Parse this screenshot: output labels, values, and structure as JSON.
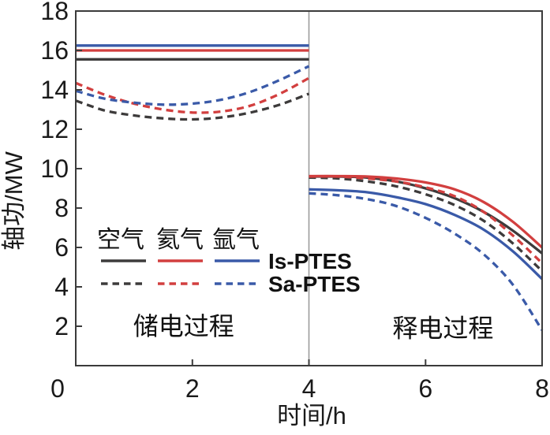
{
  "colors": {
    "air": "#3d3b3b",
    "helium": "#d23f3f",
    "argon": "#3a5aa8",
    "frame": "#3b3b3b",
    "divider": "#9b9b9b",
    "text": "#1a1a1a"
  },
  "legend": {
    "gases": [
      "空气",
      "氦气",
      "氩气"
    ],
    "systems": [
      "Is-PTES",
      "Sa-PTES"
    ]
  },
  "chart_data": {
    "type": "line",
    "title": "",
    "xlabel": "时间/h",
    "ylabel": "轴功/MW",
    "xlim": [
      0,
      8
    ],
    "ylim": [
      0,
      18
    ],
    "xticks": [
      0,
      2,
      4,
      6,
      8
    ],
    "yticks": [
      2,
      4,
      6,
      8,
      10,
      12,
      14,
      16,
      18
    ],
    "divider_x": 4,
    "grid": false,
    "legend_position": "lower-left",
    "annotations": [
      {
        "text": "储电过程",
        "x": 1.85,
        "y": 2.0
      },
      {
        "text": "释电过程",
        "x": 6.3,
        "y": 1.9
      }
    ],
    "x_charge": [
      0,
      0.5,
      1,
      1.5,
      2,
      2.5,
      3,
      3.5,
      4
    ],
    "x_discharge": [
      4,
      4.5,
      5,
      5.5,
      6,
      6.5,
      7,
      7.5,
      8
    ],
    "series": [
      {
        "id": "air-is",
        "gas": "空气",
        "system": "Is-PTES",
        "color_key": "air",
        "line_style": "solid",
        "charge_y": [
          15.55,
          15.55,
          15.55,
          15.55,
          15.55,
          15.55,
          15.55,
          15.55,
          15.55
        ],
        "discharge_y": [
          9.6,
          9.6,
          9.55,
          9.35,
          9.0,
          8.5,
          7.8,
          6.85,
          5.7
        ]
      },
      {
        "id": "helium-is",
        "gas": "氦气",
        "system": "Is-PTES",
        "color_key": "helium",
        "line_style": "solid",
        "charge_y": [
          16.0,
          16.0,
          16.0,
          16.0,
          16.0,
          16.0,
          16.0,
          16.0,
          16.0
        ],
        "discharge_y": [
          9.62,
          9.62,
          9.6,
          9.5,
          9.3,
          8.95,
          8.3,
          7.3,
          6.0
        ]
      },
      {
        "id": "argon-is",
        "gas": "氩气",
        "system": "Is-PTES",
        "color_key": "argon",
        "line_style": "solid",
        "charge_y": [
          16.25,
          16.25,
          16.25,
          16.25,
          16.25,
          16.25,
          16.25,
          16.25,
          16.25
        ],
        "discharge_y": [
          8.95,
          8.9,
          8.8,
          8.55,
          8.2,
          7.65,
          6.9,
          5.8,
          4.4
        ]
      },
      {
        "id": "air-sa",
        "gas": "空气",
        "system": "Sa-PTES",
        "color_key": "air",
        "line_style": "dashed",
        "charge_y": [
          13.45,
          12.95,
          12.7,
          12.55,
          12.5,
          12.6,
          12.85,
          13.25,
          13.8
        ],
        "discharge_y": [
          9.55,
          9.5,
          9.35,
          9.1,
          8.7,
          8.15,
          7.35,
          6.2,
          4.8
        ]
      },
      {
        "id": "helium-sa",
        "gas": "氦气",
        "system": "Sa-PTES",
        "color_key": "helium",
        "line_style": "dashed",
        "charge_y": [
          14.35,
          13.75,
          13.3,
          13.0,
          12.85,
          12.9,
          13.2,
          13.8,
          14.6
        ],
        "discharge_y": [
          9.6,
          9.6,
          9.5,
          9.35,
          9.05,
          8.6,
          7.8,
          6.6,
          5.2
        ]
      },
      {
        "id": "argon-sa",
        "gas": "氩气",
        "system": "Sa-PTES",
        "color_key": "argon",
        "line_style": "dashed",
        "charge_y": [
          13.95,
          13.55,
          13.35,
          13.25,
          13.3,
          13.5,
          13.9,
          14.5,
          15.2
        ],
        "discharge_y": [
          8.75,
          8.65,
          8.45,
          8.1,
          7.5,
          6.7,
          5.65,
          4.1,
          1.8
        ]
      }
    ]
  }
}
